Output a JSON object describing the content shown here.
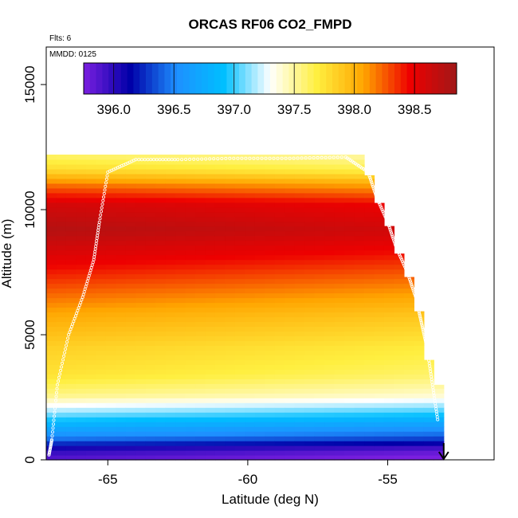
{
  "chart_data": {
    "type": "heatmap",
    "title": "ORCAS RF06 CO2_FMPD",
    "flights_note": "Flts: 6",
    "date_note": "MMDD: 0125",
    "xlabel": "Latitude (deg N)",
    "ylabel": "Altitude (m)",
    "xlim": [
      -67.2,
      -51.2
    ],
    "ylim": [
      0,
      16500
    ],
    "x_ticks": [
      -65,
      -60,
      -55
    ],
    "y_ticks": [
      0,
      5000,
      10000,
      15000
    ],
    "colorbar": {
      "range": [
        395.75,
        398.85
      ],
      "ticks": [
        396.0,
        396.5,
        397.0,
        397.5,
        398.0,
        398.5
      ],
      "colors": [
        "#7b1fe0",
        "#0000a8",
        "#1e90ff",
        "#00bfff",
        "#ffffff",
        "#ffef40",
        "#ffa500",
        "#ee0000",
        "#a01818"
      ]
    },
    "field": {
      "lat_range": [
        -67.2,
        -53.0
      ],
      "alt_top": 12200,
      "profile": [
        {
          "alt": 0,
          "value": 395.85
        },
        {
          "alt": 400,
          "value": 396.0
        },
        {
          "alt": 900,
          "value": 396.5
        },
        {
          "alt": 1400,
          "value": 396.8
        },
        {
          "alt": 2000,
          "value": 397.2
        },
        {
          "alt": 2600,
          "value": 397.55
        },
        {
          "alt": 3400,
          "value": 397.75
        },
        {
          "alt": 4500,
          "value": 397.85
        },
        {
          "alt": 5800,
          "value": 398.05
        },
        {
          "alt": 7000,
          "value": 398.3
        },
        {
          "alt": 8200,
          "value": 398.55
        },
        {
          "alt": 9200,
          "value": 398.75
        },
        {
          "alt": 10200,
          "value": 398.6
        },
        {
          "alt": 11000,
          "value": 398.2
        },
        {
          "alt": 11600,
          "value": 397.8
        },
        {
          "alt": 12200,
          "value": 397.6
        }
      ]
    },
    "flight_track": {
      "lat": [
        -67.1,
        -67.0,
        -66.8,
        -66.4,
        -65.9,
        -65.5,
        -65.3,
        -65.0,
        -64.0,
        -62.5,
        -60.5,
        -58.5,
        -56.5,
        -55.7,
        -55.4,
        -55.0,
        -54.7,
        -54.3,
        -54.0,
        -53.8,
        -53.6,
        -53.4,
        -53.2
      ],
      "alt": [
        200,
        800,
        3000,
        5000,
        6500,
        8000,
        9500,
        11500,
        12000,
        12000,
        12050,
        12050,
        12100,
        11500,
        10500,
        9500,
        8500,
        7500,
        6500,
        5500,
        4500,
        3000,
        1500
      ]
    },
    "end_marker": {
      "lat": -53.0,
      "label": "arrow"
    }
  }
}
